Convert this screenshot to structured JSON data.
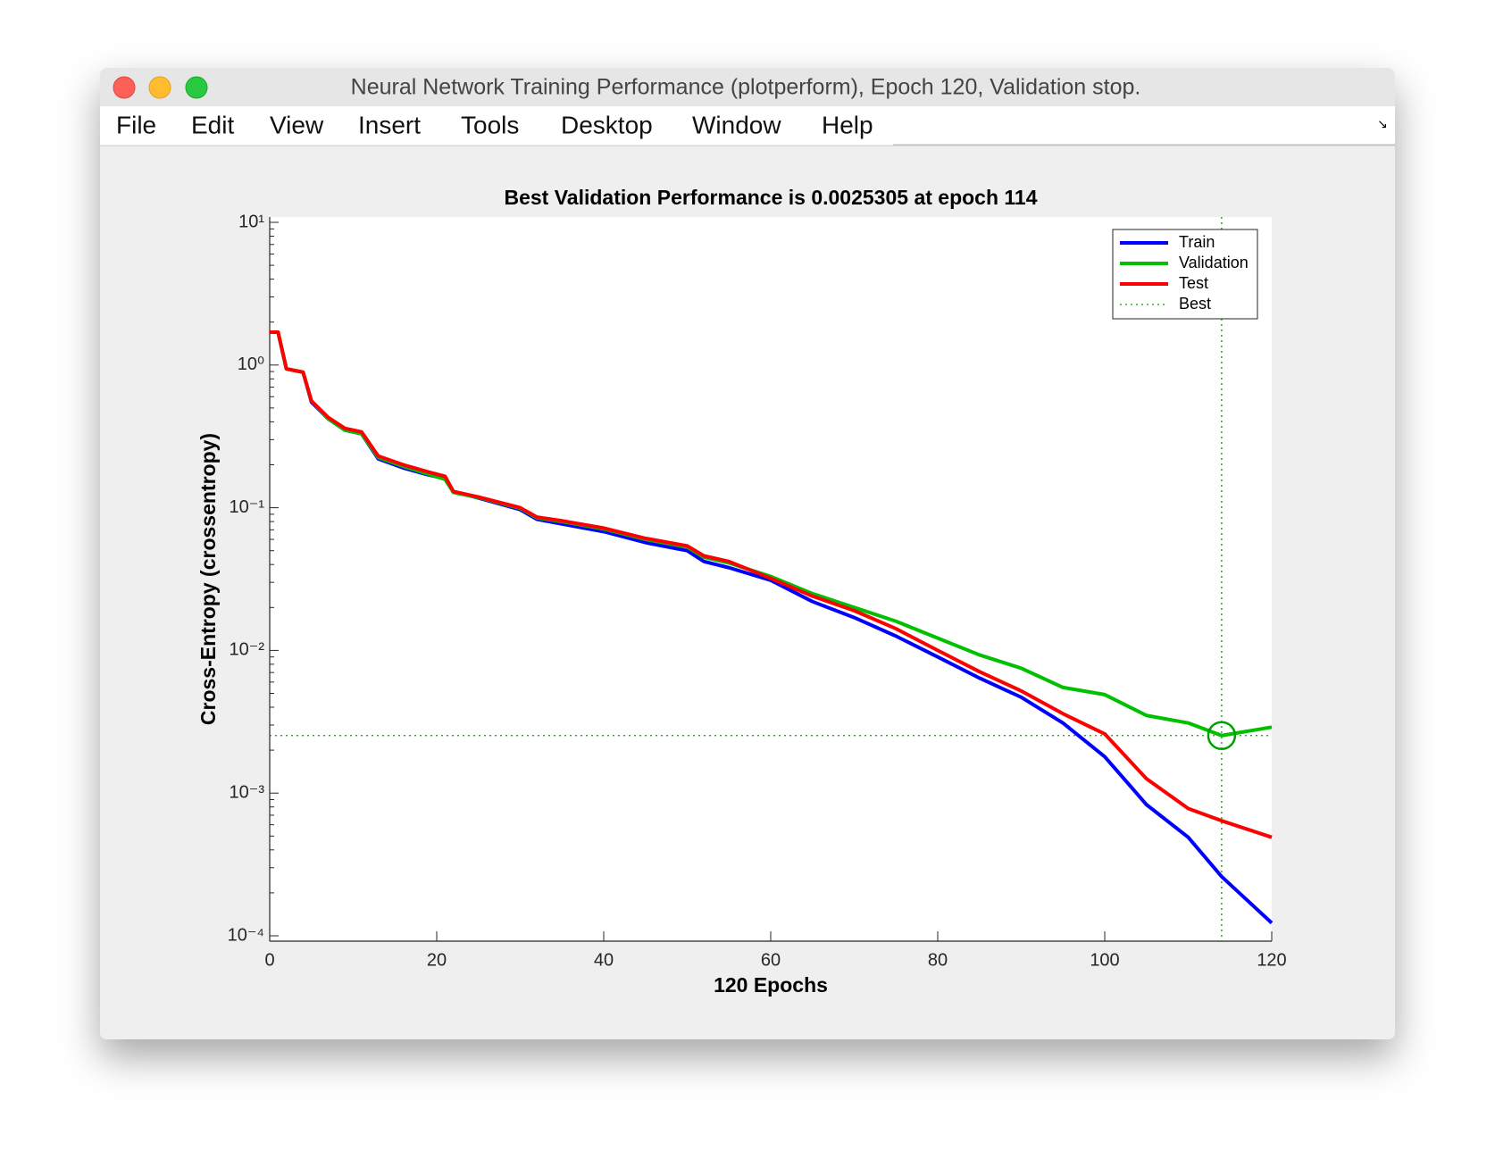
{
  "window": {
    "title": "Neural Network Training Performance (plotperform), Epoch 120, Validation stop.",
    "menu": [
      "File",
      "Edit",
      "View",
      "Insert",
      "Tools",
      "Desktop",
      "Window",
      "Help"
    ]
  },
  "chart_data": {
    "type": "line",
    "log_y": true,
    "title": "Best Validation Performance is 0.0025305 at epoch 114",
    "xlabel": "120 Epochs",
    "ylabel": "Cross-Entropy  (crossentropy)",
    "xlim": [
      0,
      120
    ],
    "xticks": [
      0,
      20,
      40,
      60,
      80,
      100,
      120
    ],
    "ylim": [
      0.0001,
      10
    ],
    "yticks": [
      {
        "value": 0.0001,
        "label": "10⁻⁴"
      },
      {
        "value": 0.001,
        "label": "10⁻³"
      },
      {
        "value": 0.01,
        "label": "10⁻²"
      },
      {
        "value": 0.1,
        "label": "10⁻¹"
      },
      {
        "value": 1,
        "label": "10⁰"
      },
      {
        "value": 10,
        "label": "10¹"
      }
    ],
    "legend": "upper right",
    "x": [
      0,
      1,
      2,
      4,
      5,
      7,
      9,
      11,
      13,
      16,
      19,
      21,
      22,
      25,
      30,
      32,
      35,
      40,
      45,
      50,
      52,
      55,
      60,
      65,
      70,
      75,
      80,
      85,
      90,
      95,
      100,
      105,
      110,
      114,
      120
    ],
    "series": [
      {
        "name": "Train",
        "color": "#0000ff",
        "values": [
          1.7,
          1.7,
          0.94,
          0.89,
          0.55,
          0.42,
          0.35,
          0.33,
          0.22,
          0.19,
          0.17,
          0.16,
          0.13,
          0.117,
          0.097,
          0.083,
          0.077,
          0.068,
          0.057,
          0.05,
          0.042,
          0.038,
          0.031,
          0.022,
          0.017,
          0.0126,
          0.009,
          0.0064,
          0.0047,
          0.0031,
          0.0018,
          0.00083,
          0.00049,
          0.00026,
          0.000123
        ]
      },
      {
        "name": "Validation",
        "color": "#00c000",
        "values": [
          1.7,
          1.7,
          0.94,
          0.89,
          0.56,
          0.42,
          0.35,
          0.33,
          0.225,
          0.195,
          0.172,
          0.158,
          0.128,
          0.118,
          0.099,
          0.085,
          0.08,
          0.071,
          0.06,
          0.053,
          0.045,
          0.041,
          0.033,
          0.025,
          0.02,
          0.016,
          0.0122,
          0.0093,
          0.0075,
          0.0055,
          0.0049,
          0.0035,
          0.0031,
          0.0025305,
          0.0029
        ]
      },
      {
        "name": "Test",
        "color": "#ff0000",
        "values": [
          1.7,
          1.7,
          0.94,
          0.89,
          0.56,
          0.43,
          0.36,
          0.34,
          0.23,
          0.2,
          0.178,
          0.166,
          0.13,
          0.119,
          0.1,
          0.086,
          0.081,
          0.072,
          0.061,
          0.054,
          0.046,
          0.042,
          0.032,
          0.024,
          0.019,
          0.0142,
          0.01,
          0.0071,
          0.0052,
          0.0036,
          0.0026,
          0.00126,
          0.00078,
          0.00064,
          0.00049
        ]
      }
    ],
    "best": {
      "name": "Best",
      "x": 114,
      "value": 0.0025305,
      "color": "#00a000"
    }
  }
}
